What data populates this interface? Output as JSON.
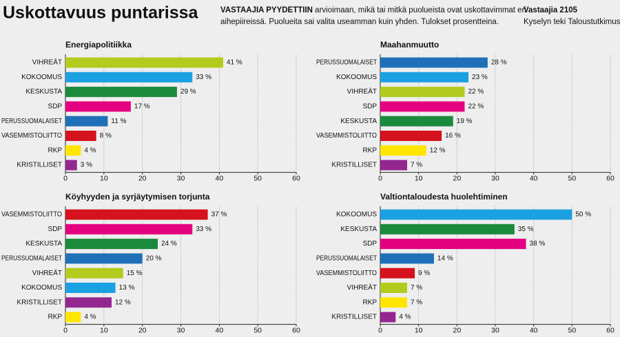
{
  "header": {
    "title": "Uskottavuus puntarissa",
    "intro_lead": "VASTAAJIA PYYDETTIIN",
    "intro_lines": [
      "arvioimaan, mikä tai mitkä puolueista ovat uskottavimmat eri",
      "aihepiireissä. Puolueita sai valita useamman kuin yhden. Tulokset prosentteina."
    ],
    "respondents": "Vastaajia 2105",
    "source": "Kyselyn teki Taloustutkimus"
  },
  "chart_data": [
    {
      "type": "bar",
      "orientation": "horizontal",
      "title": "Energiapolitiikka",
      "categories": [
        "VIHREÄT",
        "KOKOOMUS",
        "KESKUSTA",
        "SDP",
        "PERUSSUOMALAISET",
        "VASEMMISTOLIITTO",
        "RKP",
        "KRISTILLISET"
      ],
      "values": [
        41,
        33,
        29,
        17,
        11,
        8,
        4,
        3
      ],
      "value_labels": [
        "41 %",
        "33 %",
        "29 %",
        "17 %",
        "11 %",
        "8 %",
        "4 %",
        "3 %"
      ],
      "colors": [
        "#b3cb1c",
        "#1ba0e2",
        "#1b8a3c",
        "#e4007f",
        "#1f70b8",
        "#d5121e",
        "#ffe500",
        "#93278f"
      ],
      "xlim": [
        0,
        60
      ],
      "xticks": [
        0,
        10,
        20,
        30,
        40,
        50,
        60
      ],
      "grid": true
    },
    {
      "type": "bar",
      "orientation": "horizontal",
      "title": "Maahanmuutto",
      "categories": [
        "PERUSSUOMALAISET",
        "KOKOOMUS",
        "VIHREÄT",
        "SDP",
        "KESKUSTA",
        "VASEMMISTOLIITTO",
        "RKP",
        "KRISTILLISET"
      ],
      "values": [
        28,
        23,
        22,
        22,
        19,
        16,
        12,
        7
      ],
      "value_labels": [
        "28 %",
        "23 %",
        "22 %",
        "22 %",
        "19 %",
        "16 %",
        "12 %",
        "7 %"
      ],
      "colors": [
        "#1f70b8",
        "#1ba0e2",
        "#b3cb1c",
        "#e4007f",
        "#1b8a3c",
        "#d5121e",
        "#ffe500",
        "#93278f"
      ],
      "xlim": [
        0,
        60
      ],
      "xticks": [
        0,
        10,
        20,
        30,
        40,
        50,
        60
      ],
      "grid": true
    },
    {
      "type": "bar",
      "orientation": "horizontal",
      "title": "Köyhyyden ja syrjäytymisen torjunta",
      "categories": [
        "VASEMMISTOLIITTO",
        "SDP",
        "KESKUSTA",
        "PERUSSUOMALAISET",
        "VIHREÄT",
        "KOKOOMUS",
        "KRISTILLISET",
        "RKP"
      ],
      "values": [
        37,
        33,
        24,
        20,
        15,
        13,
        12,
        4
      ],
      "value_labels": [
        "37 %",
        "33 %",
        "24 %",
        "20 %",
        "15 %",
        "13 %",
        "12 %",
        "4 %"
      ],
      "colors": [
        "#d5121e",
        "#e4007f",
        "#1b8a3c",
        "#1f70b8",
        "#b3cb1c",
        "#1ba0e2",
        "#93278f",
        "#ffe500"
      ],
      "xlim": [
        0,
        60
      ],
      "xticks": [
        0,
        10,
        20,
        30,
        40,
        50,
        60
      ],
      "grid": true
    },
    {
      "type": "bar",
      "orientation": "horizontal",
      "title": "Valtiontaloudesta huolehtiminen",
      "categories": [
        "KOKOOMUS",
        "KESKUSTA",
        "SDP",
        "PERUSSUOMALAISET",
        "VASEMMISTOLIITTO",
        "VIHREÄT",
        "RKP",
        "KRISTILLISET"
      ],
      "values": [
        50,
        35,
        38,
        14,
        9,
        7,
        7,
        4
      ],
      "value_labels": [
        "50 %",
        "35 %",
        "38 %",
        "14 %",
        "9 %",
        "7 %",
        "7 %",
        "4 %"
      ],
      "colors": [
        "#1ba0e2",
        "#1b8a3c",
        "#e4007f",
        "#1f70b8",
        "#d5121e",
        "#b3cb1c",
        "#ffe500",
        "#93278f"
      ],
      "xlim": [
        0,
        60
      ],
      "xticks": [
        0,
        10,
        20,
        30,
        40,
        50,
        60
      ],
      "grid": true
    }
  ]
}
